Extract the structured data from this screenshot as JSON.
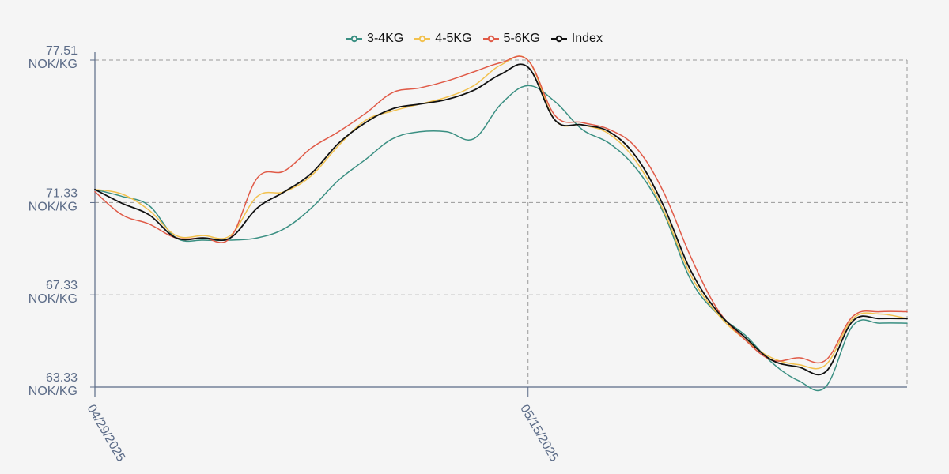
{
  "chart_data": {
    "type": "line",
    "y_tick_labels": [
      {
        "value": 77.51,
        "lines": [
          "77.51",
          "NOK/KG"
        ]
      },
      {
        "value": 71.33,
        "lines": [
          "71.33",
          "NOK/KG"
        ]
      },
      {
        "value": 67.33,
        "lines": [
          "67.33",
          "NOK/KG"
        ]
      },
      {
        "value": 63.33,
        "lines": [
          "63.33",
          "NOK/KG"
        ]
      }
    ],
    "ylim": [
      63.33,
      77.51
    ],
    "x_tick_labels": [
      {
        "date": "04/29/2025",
        "label": "04/29/2025"
      },
      {
        "date": "05/15/2025",
        "label": "05/15/2025"
      }
    ],
    "x_domain": [
      "04/29/2025",
      "05/29/2025"
    ],
    "grid": true,
    "legend_position": "top-center",
    "series": [
      {
        "name": "3-4KG",
        "color": "#3a8f82",
        "x": [
          "04/29/2025",
          "04/30/2025",
          "05/01/2025",
          "05/02/2025",
          "05/03/2025",
          "05/04/2025",
          "05/05/2025",
          "05/06/2025",
          "05/07/2025",
          "05/08/2025",
          "05/09/2025",
          "05/10/2025",
          "05/11/2025",
          "05/12/2025",
          "05/13/2025",
          "05/14/2025",
          "05/15/2025",
          "05/16/2025",
          "05/17/2025",
          "05/18/2025",
          "05/19/2025",
          "05/20/2025",
          "05/21/2025",
          "05/22/2025",
          "05/23/2025",
          "05/24/2025",
          "05/25/2025",
          "05/26/2025",
          "05/27/2025",
          "05/28/2025",
          "05/29/2025"
        ],
        "values": [
          71.9,
          71.6,
          71.2,
          69.8,
          69.7,
          69.7,
          69.8,
          70.2,
          71.1,
          72.3,
          73.2,
          74.1,
          74.4,
          74.4,
          74.1,
          75.6,
          76.4,
          75.7,
          74.5,
          73.9,
          72.8,
          70.9,
          68.0,
          66.5,
          65.6,
          64.4,
          63.6,
          63.35,
          66.0,
          66.1,
          66.1
        ],
        "lines_text": "3-4KG"
      },
      {
        "name": "4-5KG",
        "color": "#f2c14e",
        "x": [
          "04/29/2025",
          "04/30/2025",
          "05/01/2025",
          "05/02/2025",
          "05/03/2025",
          "05/04/2025",
          "05/05/2025",
          "05/06/2025",
          "05/07/2025",
          "05/08/2025",
          "05/09/2025",
          "05/10/2025",
          "05/11/2025",
          "05/12/2025",
          "05/13/2025",
          "05/14/2025",
          "05/15/2025",
          "05/16/2025",
          "05/17/2025",
          "05/18/2025",
          "05/19/2025",
          "05/20/2025",
          "05/21/2025",
          "05/22/2025",
          "05/23/2025",
          "05/24/2025",
          "05/25/2025",
          "05/26/2025",
          "05/27/2025",
          "05/28/2025",
          "05/29/2025"
        ],
        "values": [
          71.9,
          71.7,
          71.0,
          69.9,
          69.9,
          69.9,
          71.6,
          71.8,
          72.5,
          73.8,
          74.9,
          75.3,
          75.6,
          75.9,
          76.4,
          77.3,
          77.5,
          74.9,
          74.7,
          74.3,
          73.1,
          71.0,
          68.2,
          66.5,
          65.4,
          64.6,
          64.3,
          64.3,
          66.3,
          66.5,
          66.3
        ],
        "lines_text": "4-5KG"
      },
      {
        "name": "5-6KG",
        "color": "#e05a47",
        "x": [
          "04/29/2025",
          "04/30/2025",
          "05/01/2025",
          "05/02/2025",
          "05/03/2025",
          "05/04/2025",
          "05/05/2025",
          "05/06/2025",
          "05/07/2025",
          "05/08/2025",
          "05/09/2025",
          "05/10/2025",
          "05/11/2025",
          "05/12/2025",
          "05/13/2025",
          "05/14/2025",
          "05/15/2025",
          "05/16/2025",
          "05/17/2025",
          "05/18/2025",
          "05/19/2025",
          "05/20/2025",
          "05/21/2025",
          "05/22/2025",
          "05/23/2025",
          "05/24/2025",
          "05/25/2025",
          "05/26/2025",
          "05/27/2025",
          "05/28/2025",
          "05/29/2025"
        ],
        "values": [
          71.8,
          70.8,
          70.4,
          69.8,
          69.8,
          69.8,
          72.4,
          72.7,
          73.7,
          74.4,
          75.2,
          76.1,
          76.3,
          76.6,
          77.0,
          77.4,
          77.5,
          75.1,
          74.8,
          74.5,
          73.7,
          71.8,
          69.0,
          66.7,
          65.4,
          64.5,
          64.6,
          64.5,
          66.4,
          66.6,
          66.6
        ],
        "lines_text": "5-6KG"
      },
      {
        "name": "Index",
        "color": "#111111",
        "x": [
          "04/29/2025",
          "04/30/2025",
          "05/01/2025",
          "05/02/2025",
          "05/03/2025",
          "05/04/2025",
          "05/05/2025",
          "05/06/2025",
          "05/07/2025",
          "05/08/2025",
          "05/09/2025",
          "05/10/2025",
          "05/11/2025",
          "05/12/2025",
          "05/13/2025",
          "05/14/2025",
          "05/15/2025",
          "05/16/2025",
          "05/17/2025",
          "05/18/2025",
          "05/19/2025",
          "05/20/2025",
          "05/21/2025",
          "05/22/2025",
          "05/23/2025",
          "05/24/2025",
          "05/25/2025",
          "05/26/2025",
          "05/27/2025",
          "05/28/2025",
          "05/29/2025"
        ],
        "values": [
          71.9,
          71.3,
          70.8,
          69.8,
          69.8,
          69.8,
          71.1,
          71.8,
          72.6,
          73.9,
          74.8,
          75.4,
          75.6,
          75.8,
          76.2,
          76.9,
          77.2,
          74.9,
          74.7,
          74.4,
          73.3,
          71.2,
          68.4,
          66.6,
          65.5,
          64.5,
          64.2,
          64.0,
          66.2,
          66.3,
          66.3
        ],
        "lines_text": "Index"
      }
    ]
  },
  "legend": [
    {
      "label": "3-4KG",
      "color": "#3a8f82"
    },
    {
      "label": "4-5KG",
      "color": "#f2c14e"
    },
    {
      "label": "5-6KG",
      "color": "#e05a47"
    },
    {
      "label": "Index",
      "color": "#111111"
    }
  ],
  "colors": {
    "axis": "#5b6b87",
    "grid": "#999999",
    "background": "#f5f5f5"
  }
}
